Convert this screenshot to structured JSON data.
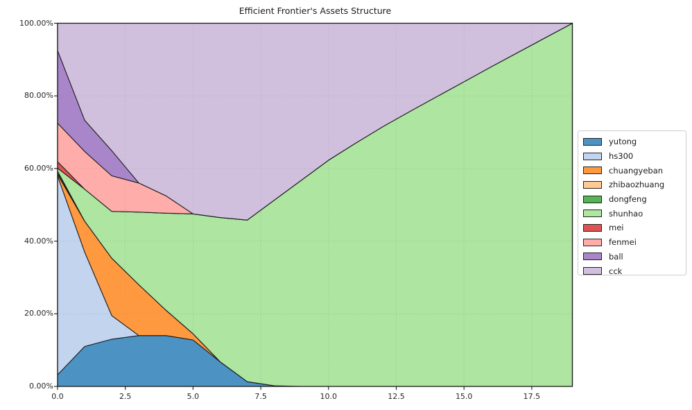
{
  "title": "Efficient Frontier's Assets Structure",
  "axes": {
    "x_ticks": [
      "0.0",
      "2.5",
      "5.0",
      "7.5",
      "10.0",
      "12.5",
      "15.0",
      "17.5"
    ],
    "x_tick_values": [
      0,
      2.5,
      5,
      7.5,
      10,
      12.5,
      15,
      17.5
    ],
    "y_ticks": [
      "0.00%",
      "20.00%",
      "40.00%",
      "60.00%",
      "80.00%",
      "100.00%"
    ],
    "y_tick_values": [
      0,
      20,
      40,
      60,
      80,
      100
    ],
    "xlim": [
      0,
      19
    ],
    "ylim": [
      0,
      100
    ]
  },
  "chart_data": {
    "type": "area",
    "stacked": true,
    "title": "Efficient Frontier's Assets Structure",
    "xlabel": "",
    "ylabel": "",
    "grid": "dotted",
    "legend_position": "right-outside",
    "edge_color": "#141414",
    "x": [
      0,
      1,
      2,
      3,
      4,
      5,
      6,
      7,
      8,
      9,
      10,
      11,
      12,
      13,
      14,
      15,
      16,
      17,
      18,
      19
    ],
    "series": [
      {
        "name": "yutong",
        "color": "#4C92C3",
        "values": [
          3.2,
          11,
          13,
          14,
          14,
          12.8,
          6.8,
          1.3,
          0.2,
          0,
          0,
          0,
          0,
          0,
          0,
          0,
          0,
          0,
          0,
          0
        ]
      },
      {
        "name": "hs300",
        "color": "#C3D4EE",
        "values": [
          54.8,
          26,
          6.5,
          0,
          0,
          0,
          0,
          0,
          0,
          0,
          0,
          0,
          0,
          0,
          0,
          0,
          0,
          0,
          0,
          0
        ]
      },
      {
        "name": "chuangyeban",
        "color": "#FF9940",
        "values": [
          0.4,
          8.5,
          15.8,
          14,
          7.0,
          1.7,
          0,
          0,
          0,
          0,
          0,
          0,
          0,
          0,
          0,
          0,
          0,
          0,
          0,
          0
        ]
      },
      {
        "name": "zhibaozhuang",
        "color": "#FFC993",
        "values": [
          0.3,
          0,
          0,
          0,
          0,
          0,
          0,
          0,
          0,
          0,
          0,
          0,
          0,
          0,
          0,
          0,
          0,
          0,
          0,
          0
        ]
      },
      {
        "name": "dongfeng",
        "color": "#56B356",
        "values": [
          0.6,
          0,
          0,
          0,
          0,
          0,
          0,
          0,
          0,
          0,
          0,
          0,
          0,
          0,
          0,
          0,
          0,
          0,
          0,
          0
        ]
      },
      {
        "name": "shunhao",
        "color": "#ADE5A1",
        "values": [
          0.8,
          8.8,
          12.9,
          20,
          26.7,
          33,
          39.7,
          44.5,
          51.1,
          56.8,
          62.3,
          67.0,
          71.5,
          75.7,
          79.8,
          83.9,
          88.0,
          92.0,
          96.0,
          100
        ]
      },
      {
        "name": "mei",
        "color": "#DE5253",
        "values": [
          1.8,
          0,
          0,
          0,
          0,
          0,
          0,
          0,
          0,
          0,
          0,
          0,
          0,
          0,
          0,
          0,
          0,
          0,
          0,
          0
        ]
      },
      {
        "name": "fenmei",
        "color": "#FFADAB",
        "values": [
          10.6,
          10.4,
          9.8,
          8.0,
          4.8,
          0,
          0,
          0,
          0,
          0,
          0,
          0,
          0,
          0,
          0,
          0,
          0,
          0,
          0,
          0
        ]
      },
      {
        "name": "ball",
        "color": "#A985CA",
        "values": [
          20.0,
          8.6,
          6.9,
          0,
          0,
          0,
          0,
          0,
          0,
          0,
          0,
          0,
          0,
          0,
          0,
          0,
          0,
          0,
          0,
          0
        ]
      },
      {
        "name": "cck",
        "color": "#D0C0DD",
        "values": [
          7.5,
          26.7,
          35.1,
          44,
          47.5,
          52.5,
          53.5,
          54.2,
          48.7,
          43.2,
          37.7,
          33.0,
          28.5,
          24.3,
          20.2,
          16.1,
          12.0,
          8.0,
          4.0,
          0
        ]
      }
    ]
  }
}
